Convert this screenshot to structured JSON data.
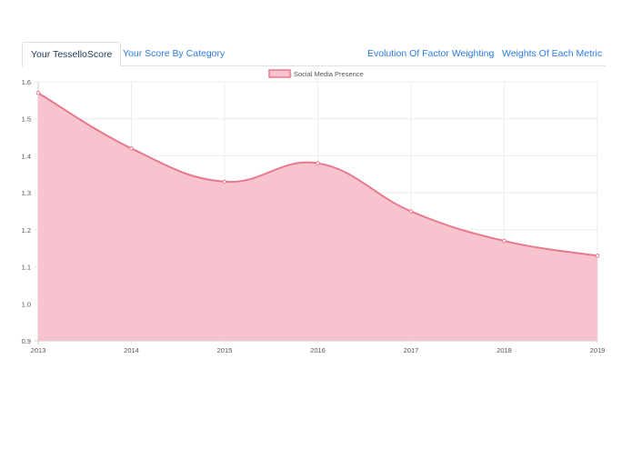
{
  "tabs": {
    "score": "Your TesselloScore",
    "category": "Your Score By Category",
    "evolution": "Evolution Of Factor Weighting",
    "weights": "Weights Of Each Metric"
  },
  "chart_data": {
    "type": "area",
    "x": [
      "2013",
      "2014",
      "2015",
      "2016",
      "2017",
      "2018",
      "2019"
    ],
    "series": [
      {
        "name": "Social Media Presence",
        "values": [
          1.57,
          1.42,
          1.33,
          1.38,
          1.25,
          1.17,
          1.13
        ],
        "color": "#e8788c",
        "fill": "#f7c3cf"
      }
    ],
    "ylim": [
      0.9,
      1.6
    ],
    "yticks": [
      "0.9",
      "1.0",
      "1.1",
      "1.2",
      "1.3",
      "1.4",
      "1.5",
      "1.6"
    ],
    "legend": "top-center",
    "grid": true
  }
}
